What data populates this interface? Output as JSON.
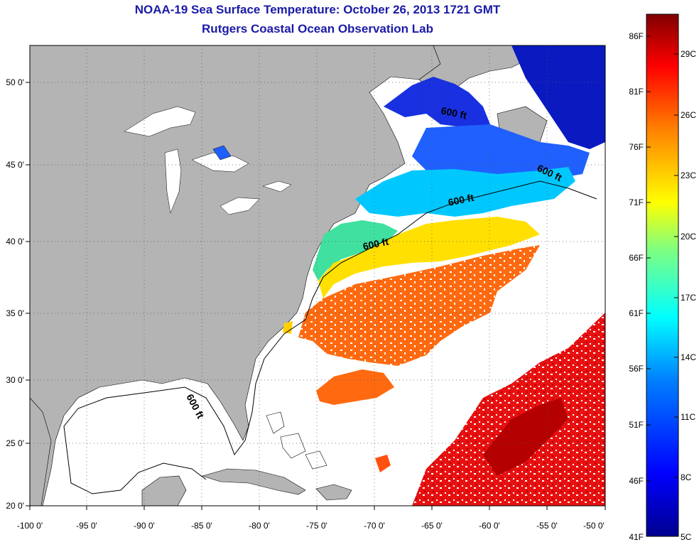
{
  "title": "NOAA-19 Sea Surface Temperature:  October 26, 2013 1721 GMT",
  "subtitle": "Rutgers Coastal Ocean Observation Lab",
  "map": {
    "lon_range": [
      -100,
      -50
    ],
    "lat_range": [
      20,
      52.5
    ],
    "lon_ticks": [
      "-100 0'",
      "-95 0'",
      "-90 0'",
      "-85 0'",
      "-80 0'",
      "-75 0'",
      "-70 0'",
      "-65 0'",
      "-60 0'",
      "-55 0'",
      "-50 0'"
    ],
    "lat_ticks": [
      "20 0'",
      "25 0'",
      "30 0'",
      "35 0'",
      "40 0'",
      "45 0'",
      "50 0'"
    ],
    "land_color": "#b4b4b4",
    "contour_label": "600 ft",
    "contour_labels": [
      "600 ft",
      "600 ft",
      "600 ft",
      "600 ft",
      "600 ft"
    ]
  },
  "colorbar": {
    "fahrenheit_labels": [
      "86F",
      "81F",
      "76F",
      "71F",
      "66F",
      "61F",
      "56F",
      "51F",
      "46F",
      "41F"
    ],
    "celsius_labels": [
      "29C",
      "26C",
      "23C",
      "20C",
      "17C",
      "14C",
      "11C",
      "8C",
      "5C"
    ],
    "colors": [
      "#00008f",
      "#0000ff",
      "#0080ff",
      "#00ffff",
      "#80ff80",
      "#ffff00",
      "#ff8000",
      "#ff0000",
      "#800000"
    ]
  }
}
